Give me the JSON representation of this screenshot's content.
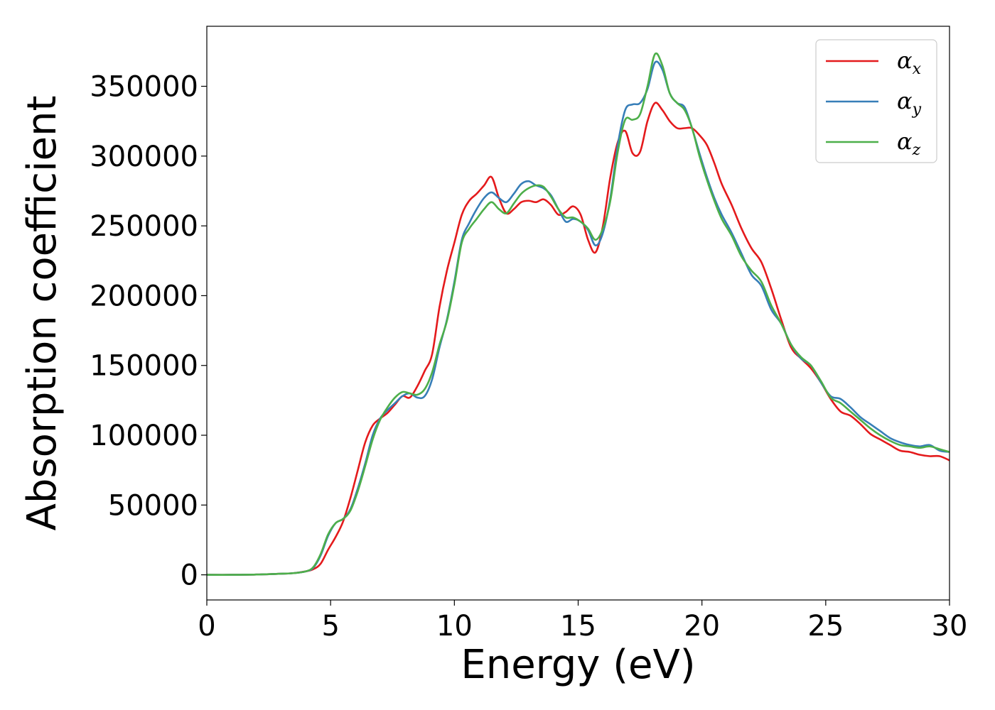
{
  "chart_data": {
    "type": "line",
    "xlabel": "Energy (eV)",
    "ylabel": "Absorption coefficient",
    "xlim": [
      0,
      30
    ],
    "ylim": [
      -18000,
      393000
    ],
    "xticks": [
      0,
      5,
      10,
      15,
      20,
      25,
      30
    ],
    "xtick_labels": [
      "0",
      "5",
      "10",
      "15",
      "20",
      "25",
      "30"
    ],
    "yticks": [
      0,
      50000,
      100000,
      150000,
      200000,
      250000,
      300000,
      350000
    ],
    "ytick_labels": [
      "0",
      "50000",
      "100000",
      "150000",
      "200000",
      "250000",
      "300000",
      "350000"
    ],
    "grid": false,
    "legend_position": "top-right",
    "series": [
      {
        "name": "α_x",
        "legend_main": "α",
        "legend_sub": "x",
        "color": "#e41a1c",
        "x": [
          0,
          1,
          2,
          3,
          3.5,
          4,
          4.3,
          4.6,
          4.9,
          5.2,
          5.5,
          5.8,
          6.1,
          6.4,
          6.7,
          7.0,
          7.3,
          7.6,
          7.9,
          8.2,
          8.5,
          8.8,
          9.1,
          9.4,
          9.7,
          10.0,
          10.3,
          10.6,
          10.9,
          11.2,
          11.5,
          11.8,
          12.1,
          12.4,
          12.7,
          13.0,
          13.3,
          13.6,
          13.9,
          14.2,
          14.5,
          14.8,
          15.1,
          15.4,
          15.7,
          16.0,
          16.3,
          16.6,
          16.9,
          17.2,
          17.5,
          17.8,
          18.1,
          18.4,
          18.7,
          19.0,
          19.3,
          19.6,
          19.9,
          20.2,
          20.5,
          20.8,
          21.2,
          21.6,
          22.0,
          22.4,
          22.8,
          23.2,
          23.6,
          24.0,
          24.4,
          24.8,
          25.2,
          25.6,
          26.0,
          26.4,
          26.8,
          27.2,
          27.6,
          28.0,
          28.4,
          28.8,
          29.2,
          29.6,
          30.0
        ],
        "y": [
          0,
          0,
          200,
          800,
          1200,
          2500,
          4000,
          8000,
          18000,
          27000,
          38000,
          55000,
          75000,
          95000,
          107000,
          112000,
          116000,
          122000,
          128000,
          127000,
          135000,
          146000,
          158000,
          192000,
          218000,
          238000,
          258000,
          268000,
          273000,
          279000,
          285000,
          270000,
          259000,
          262000,
          267000,
          268000,
          267000,
          269000,
          265000,
          258000,
          260000,
          264000,
          258000,
          240000,
          231000,
          250000,
          285000,
          310000,
          318000,
          302000,
          303000,
          325000,
          338000,
          333000,
          325000,
          320000,
          320000,
          320000,
          315000,
          308000,
          295000,
          280000,
          265000,
          248000,
          234000,
          224000,
          205000,
          183000,
          163000,
          155000,
          148000,
          138000,
          126000,
          117000,
          114000,
          108000,
          101000,
          97000,
          93000,
          89000,
          88000,
          86000,
          85000,
          85000,
          82000
        ]
      },
      {
        "name": "α_y",
        "legend_main": "α",
        "legend_sub": "y",
        "color": "#377eb8",
        "x": [
          0,
          1,
          2,
          3,
          3.5,
          4,
          4.3,
          4.6,
          4.9,
          5.2,
          5.5,
          5.8,
          6.1,
          6.4,
          6.7,
          7.0,
          7.3,
          7.6,
          7.9,
          8.2,
          8.5,
          8.8,
          9.1,
          9.4,
          9.7,
          10.0,
          10.3,
          10.6,
          10.9,
          11.2,
          11.5,
          11.8,
          12.1,
          12.4,
          12.7,
          13.0,
          13.3,
          13.6,
          13.9,
          14.2,
          14.5,
          14.8,
          15.1,
          15.4,
          15.7,
          16.0,
          16.3,
          16.6,
          16.9,
          17.2,
          17.5,
          17.8,
          18.1,
          18.4,
          18.7,
          19.0,
          19.3,
          19.6,
          19.9,
          20.2,
          20.5,
          20.8,
          21.2,
          21.6,
          22.0,
          22.4,
          22.8,
          23.2,
          23.6,
          24.0,
          24.4,
          24.8,
          25.2,
          25.6,
          26.0,
          26.4,
          26.8,
          27.2,
          27.6,
          28.0,
          28.4,
          28.8,
          29.2,
          29.6,
          30.0
        ],
        "y": [
          0,
          0,
          200,
          800,
          1200,
          2500,
          5000,
          14000,
          28000,
          37000,
          40000,
          47000,
          62000,
          80000,
          100000,
          112000,
          118000,
          123000,
          128000,
          130000,
          127000,
          128000,
          140000,
          163000,
          183000,
          210000,
          240000,
          252000,
          262000,
          270000,
          274000,
          270000,
          267000,
          273000,
          280000,
          282000,
          279000,
          277000,
          272000,
          262000,
          253000,
          255000,
          253000,
          247000,
          236000,
          245000,
          270000,
          308000,
          333000,
          337000,
          338000,
          348000,
          367000,
          362000,
          345000,
          338000,
          335000,
          320000,
          302000,
          285000,
          270000,
          258000,
          245000,
          230000,
          215000,
          207000,
          190000,
          180000,
          165000,
          155000,
          150000,
          138000,
          128000,
          126000,
          120000,
          113000,
          108000,
          103000,
          98000,
          95000,
          93000,
          92000,
          93000,
          89000,
          88000
        ]
      },
      {
        "name": "α_z",
        "legend_main": "α",
        "legend_sub": "z",
        "color": "#4daf4a",
        "x": [
          0,
          1,
          2,
          3,
          3.5,
          4,
          4.3,
          4.6,
          4.9,
          5.2,
          5.5,
          5.8,
          6.1,
          6.4,
          6.7,
          7.0,
          7.3,
          7.6,
          7.9,
          8.2,
          8.5,
          8.8,
          9.1,
          9.4,
          9.7,
          10.0,
          10.3,
          10.6,
          10.9,
          11.2,
          11.5,
          11.8,
          12.1,
          12.4,
          12.7,
          13.0,
          13.3,
          13.6,
          13.9,
          14.2,
          14.5,
          14.8,
          15.1,
          15.4,
          15.7,
          16.0,
          16.3,
          16.6,
          16.9,
          17.2,
          17.5,
          17.8,
          18.1,
          18.4,
          18.7,
          19.0,
          19.3,
          19.6,
          19.9,
          20.2,
          20.5,
          20.8,
          21.2,
          21.6,
          22.0,
          22.4,
          22.8,
          23.2,
          23.6,
          24.0,
          24.4,
          24.8,
          25.2,
          25.6,
          26.0,
          26.4,
          26.8,
          27.2,
          27.6,
          28.0,
          28.4,
          28.8,
          29.2,
          29.6,
          30.0
        ],
        "y": [
          0,
          0,
          200,
          800,
          1200,
          2500,
          5500,
          15000,
          29000,
          37000,
          40000,
          46000,
          60000,
          78000,
          97000,
          111000,
          120000,
          127000,
          131000,
          130000,
          129000,
          133000,
          145000,
          165000,
          182000,
          208000,
          238000,
          248000,
          255000,
          262000,
          267000,
          262000,
          259000,
          266000,
          273000,
          277000,
          279000,
          278000,
          271000,
          262000,
          256000,
          256000,
          253000,
          248000,
          240000,
          248000,
          268000,
          303000,
          326000,
          326000,
          330000,
          350000,
          373000,
          365000,
          345000,
          338000,
          333000,
          320000,
          300000,
          283000,
          268000,
          255000,
          243000,
          228000,
          218000,
          210000,
          193000,
          180000,
          165000,
          156000,
          150000,
          139000,
          127000,
          123000,
          117000,
          111000,
          105000,
          100000,
          96000,
          93000,
          92000,
          91000,
          92000,
          90000,
          88000
        ]
      }
    ]
  }
}
